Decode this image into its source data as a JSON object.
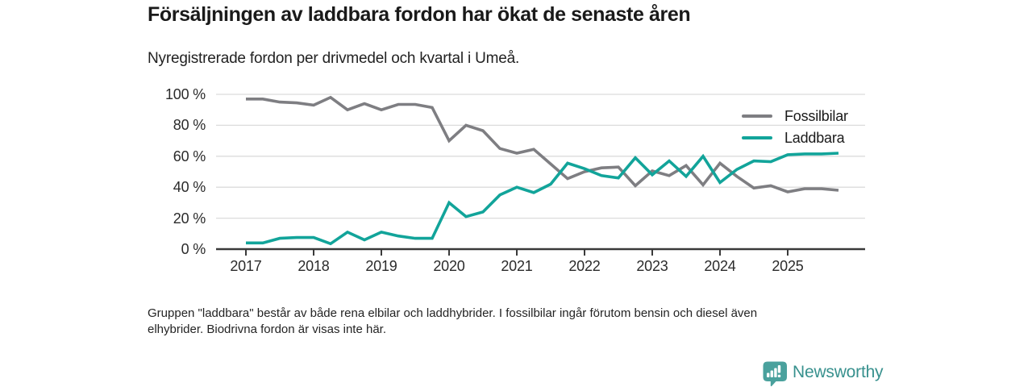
{
  "header": {
    "title": "Försäljningen av laddbara fordon har ökat de senaste åren",
    "subtitle": "Nyregistrerade fordon per drivmedel och kvartal i Umeå."
  },
  "chart_data": {
    "type": "line",
    "unit": "%",
    "grid": "horizontal",
    "legend_position": "top-right",
    "ylim": [
      0,
      100
    ],
    "yticks": [
      0,
      20,
      40,
      60,
      80,
      100
    ],
    "ytick_labels": [
      "0 %",
      "20 %",
      "40 %",
      "60 %",
      "80 %",
      "100 %"
    ],
    "x_axis_year_ticks": [
      "2017",
      "2018",
      "2019",
      "2020",
      "2021",
      "2022",
      "2023",
      "2024",
      "2025"
    ],
    "x": [
      "2017 Q1",
      "2017 Q2",
      "2017 Q3",
      "2017 Q4",
      "2018 Q1",
      "2018 Q2",
      "2018 Q3",
      "2018 Q4",
      "2019 Q1",
      "2019 Q2",
      "2019 Q3",
      "2019 Q4",
      "2020 Q1",
      "2020 Q2",
      "2020 Q3",
      "2020 Q4",
      "2021 Q1",
      "2021 Q2",
      "2021 Q3",
      "2021 Q4",
      "2022 Q1",
      "2022 Q2",
      "2022 Q3",
      "2022 Q4",
      "2023 Q1",
      "2023 Q2",
      "2023 Q3",
      "2023 Q4",
      "2024 Q1",
      "2024 Q2",
      "2024 Q3",
      "2024 Q4",
      "2025 Q1",
      "2025 Q2",
      "2025 Q3",
      "2025 Q4"
    ],
    "series": [
      {
        "name": "Fossilbilar",
        "color": "#7e7e82",
        "values": [
          97,
          97,
          95,
          94.5,
          93,
          98,
          90,
          94,
          90,
          93.5,
          93.5,
          91.5,
          70,
          80,
          76.5,
          65,
          62,
          64.5,
          55,
          45.5,
          50,
          52.5,
          53,
          41,
          50.5,
          47.5,
          54,
          41.5,
          55.5,
          47,
          39.5,
          41,
          37,
          39,
          39,
          38
        ]
      },
      {
        "name": "Laddbara",
        "color": "#12a49a",
        "values": [
          4,
          4,
          7,
          7.5,
          7.5,
          3.5,
          11,
          6,
          11,
          8.5,
          7,
          7,
          30,
          21,
          24,
          35,
          40,
          36.5,
          42,
          55.5,
          52,
          47.5,
          46,
          59,
          48,
          57,
          47,
          60,
          43,
          51.5,
          57,
          56.5,
          61,
          61.5,
          61.5,
          62
        ]
      }
    ]
  },
  "footnote": {
    "line1": "Gruppen \"laddbara\" består av både rena elbilar och laddhybrider. I fossilbilar ingår förutom bensin och diesel även",
    "line2": "elhybrider. Biodrivna fordon är visas inte här."
  },
  "branding": {
    "name": "Newsworthy",
    "icon": "newsworthy-chart-bubble-icon",
    "icon_color": "#4aa19d",
    "text_color": "#38918e"
  }
}
